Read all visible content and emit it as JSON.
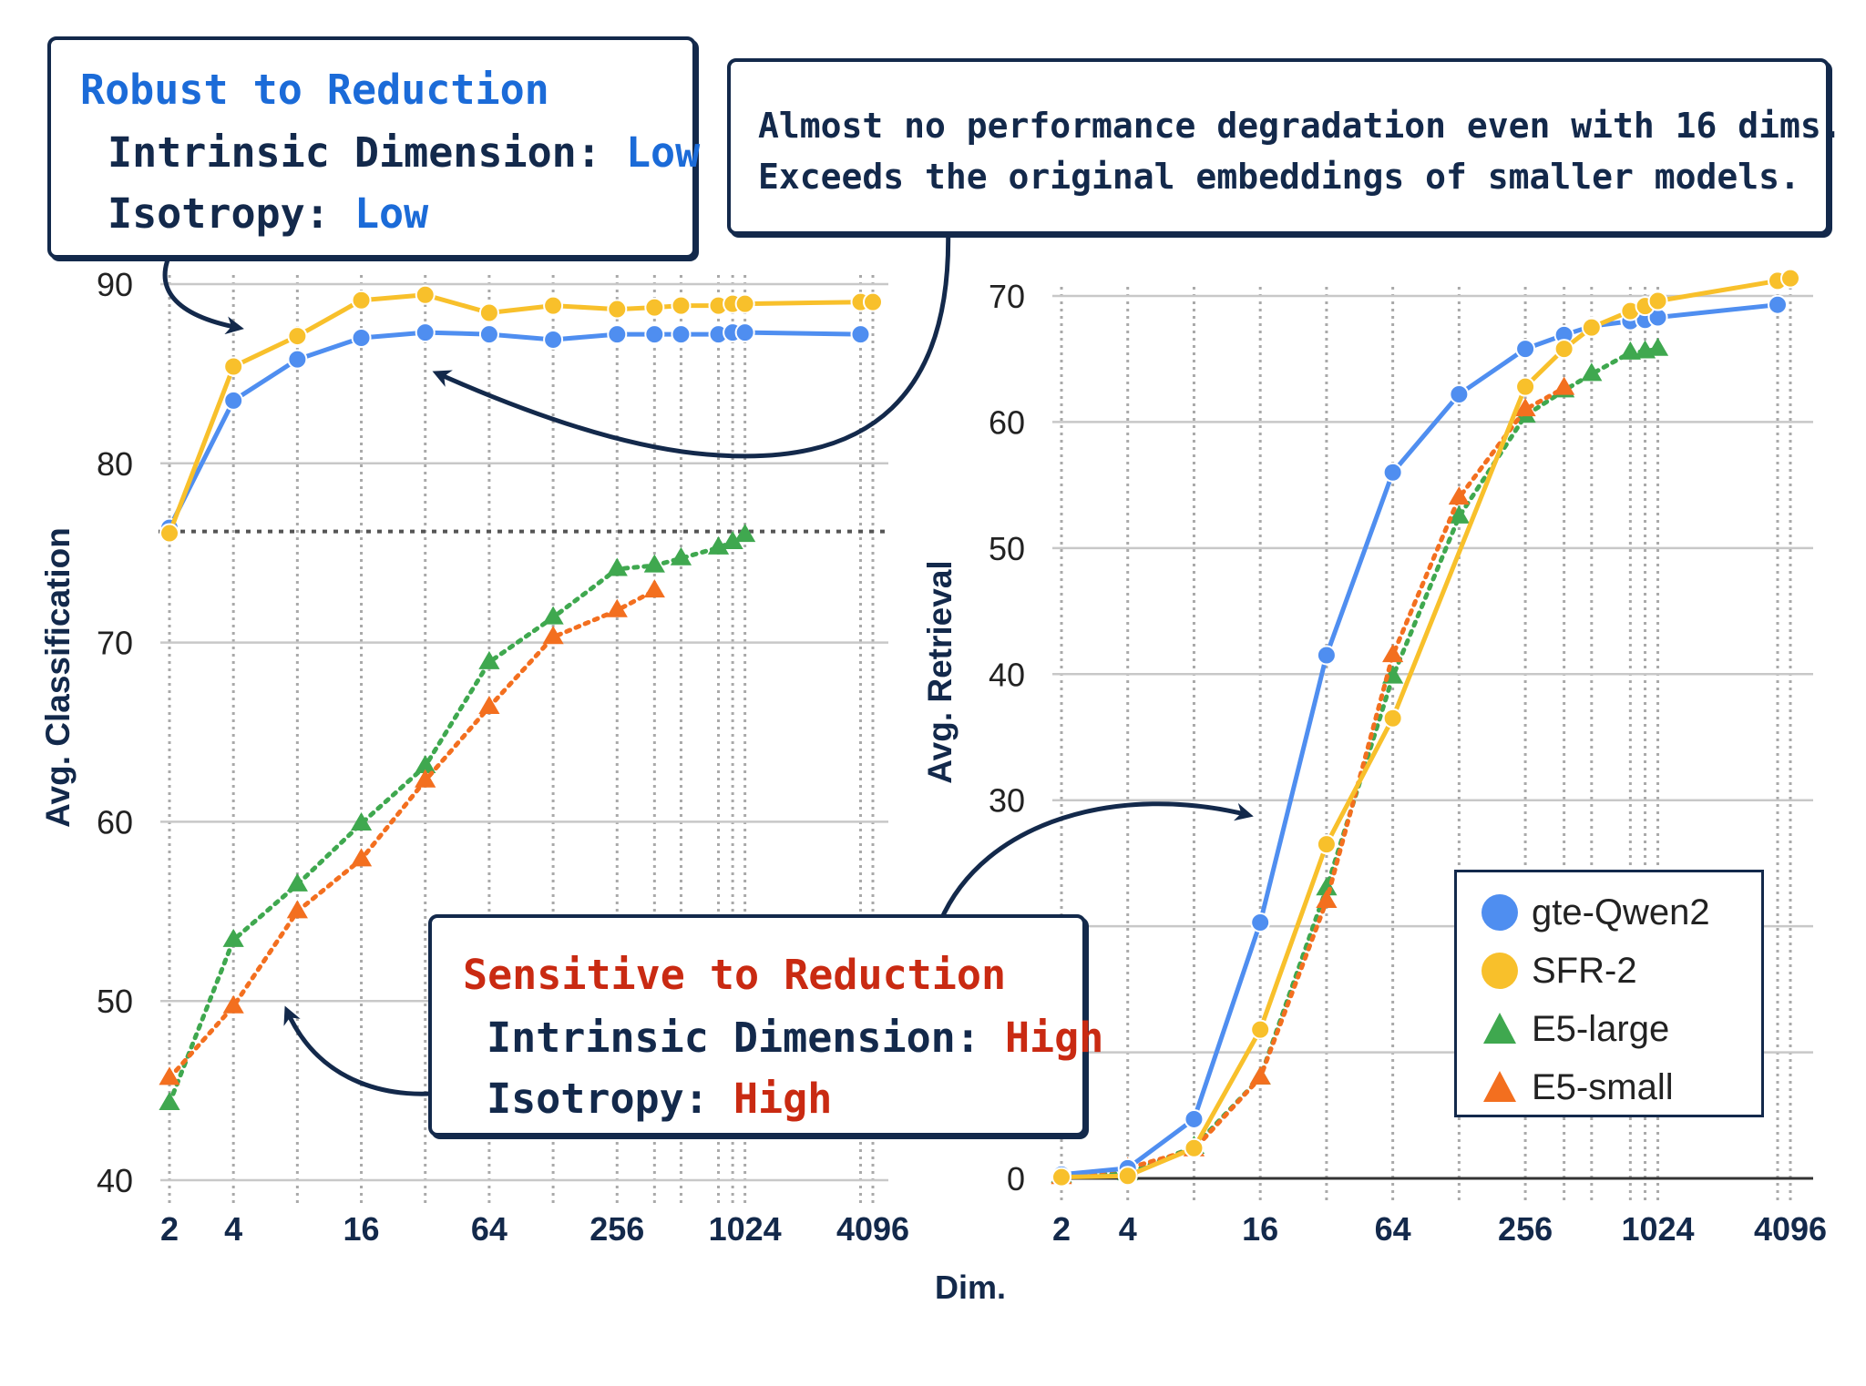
{
  "colors": {
    "gte": "#4f8ef0",
    "sfr": "#f8c02b",
    "e5large": "#3fa84f",
    "e5small": "#f36f1f",
    "navy": "#13294b",
    "blue_text": "#1b6bd8",
    "red_text": "#c92a12",
    "grid": "#c8c8c8"
  },
  "annotations": {
    "robust": {
      "title": "Robust to Reduction",
      "dim_label": "Intrinsic Dimension:",
      "dim_value": "Low",
      "iso_label": "Isotropy:",
      "iso_value": "Low"
    },
    "note": {
      "line1": "Almost no performance degradation even with 16 dims.",
      "line2": "Exceeds the original embeddings of smaller models."
    },
    "sensitive": {
      "title": "Sensitive to Reduction",
      "dim_label": "Intrinsic Dimension:",
      "dim_value": "High",
      "iso_label": "Isotropy:",
      "iso_value": "High"
    }
  },
  "legend": {
    "items": [
      {
        "label": "gte-Qwen2",
        "shape": "circle",
        "color_key": "gte"
      },
      {
        "label": "SFR-2",
        "shape": "circle",
        "color_key": "sfr"
      },
      {
        "label": "E5-large",
        "shape": "triangle",
        "color_key": "e5large"
      },
      {
        "label": "E5-small",
        "shape": "triangle",
        "color_key": "e5small"
      }
    ]
  },
  "chart_data": [
    {
      "type": "line",
      "title": "",
      "xlabel": "Dim.",
      "ylabel": "Avg. Classification",
      "x_scale": "log2",
      "xlim": [
        2,
        4096
      ],
      "ylim": [
        40,
        90
      ],
      "yticks": [
        40,
        50,
        60,
        70,
        80,
        90
      ],
      "xticks": [
        2,
        4,
        16,
        64,
        256,
        1024,
        4096
      ],
      "reference_line": 76.2,
      "series": [
        {
          "name": "gte-Qwen2",
          "color_key": "gte",
          "marker": "circle",
          "dash": false,
          "x": [
            2,
            4,
            8,
            16,
            32,
            64,
            128,
            256,
            384,
            512,
            768,
            896,
            1024,
            3584
          ],
          "y": [
            76.4,
            83.5,
            85.8,
            87.0,
            87.3,
            87.2,
            86.9,
            87.2,
            87.2,
            87.2,
            87.2,
            87.3,
            87.3,
            87.2
          ]
        },
        {
          "name": "SFR-2",
          "color_key": "sfr",
          "marker": "circle",
          "dash": false,
          "x": [
            2,
            4,
            8,
            16,
            32,
            64,
            128,
            256,
            384,
            512,
            768,
            896,
            1024,
            3584,
            4096
          ],
          "y": [
            76.1,
            85.4,
            87.1,
            89.1,
            89.4,
            88.4,
            88.8,
            88.6,
            88.7,
            88.8,
            88.8,
            88.9,
            88.9,
            89.0,
            89.0
          ]
        },
        {
          "name": "E5-large",
          "color_key": "e5large",
          "marker": "triangle",
          "dash": true,
          "x": [
            2,
            4,
            8,
            16,
            32,
            64,
            128,
            256,
            384,
            512,
            768,
            896,
            1024
          ],
          "y": [
            44.3,
            53.4,
            56.5,
            59.9,
            63.1,
            68.9,
            71.4,
            74.1,
            74.3,
            74.7,
            75.3,
            75.6,
            76.0
          ]
        },
        {
          "name": "E5-small",
          "color_key": "e5small",
          "marker": "triangle",
          "dash": true,
          "x": [
            2,
            4,
            8,
            16,
            32,
            64,
            128,
            256,
            384
          ],
          "y": [
            45.7,
            49.7,
            55.0,
            57.9,
            62.3,
            66.4,
            70.3,
            71.8,
            72.9
          ]
        }
      ]
    },
    {
      "type": "line",
      "title": "",
      "xlabel": "Dim.",
      "ylabel": "Avg. Retrieval",
      "x_scale": "log2",
      "xlim": [
        2,
        4096
      ],
      "ylim": [
        0,
        70
      ],
      "yticks": [
        0,
        30,
        40,
        50,
        60,
        70
      ],
      "xticks": [
        2,
        4,
        16,
        64,
        256,
        1024,
        4096
      ],
      "series": [
        {
          "name": "gte-Qwen2",
          "color_key": "gte",
          "marker": "circle",
          "dash": false,
          "x": [
            2,
            4,
            8,
            16,
            32,
            64,
            128,
            256,
            384,
            512,
            768,
            896,
            1024,
            3584
          ],
          "y": [
            0.3,
            0.8,
            4.7,
            20.3,
            41.5,
            56.0,
            62.2,
            65.8,
            66.9,
            67.6,
            68.0,
            68.1,
            68.3,
            69.3
          ]
        },
        {
          "name": "SFR-2",
          "color_key": "sfr",
          "marker": "circle",
          "dash": false,
          "x": [
            2,
            4,
            8,
            16,
            32,
            64,
            256,
            384,
            512,
            768,
            896,
            1024,
            3584,
            4096
          ],
          "y": [
            0.1,
            0.2,
            2.4,
            11.8,
            26.5,
            36.5,
            62.8,
            65.8,
            67.5,
            68.8,
            69.2,
            69.6,
            71.2,
            71.4
          ]
        },
        {
          "name": "E5-large",
          "color_key": "e5large",
          "marker": "triangle",
          "dash": true,
          "x": [
            2,
            4,
            8,
            16,
            32,
            64,
            128,
            256,
            384,
            512,
            768,
            896,
            1024
          ],
          "y": [
            0.2,
            0.4,
            2.5,
            8.0,
            23.0,
            39.8,
            52.5,
            60.5,
            62.5,
            63.8,
            65.5,
            65.6,
            65.8
          ]
        },
        {
          "name": "E5-small",
          "color_key": "e5small",
          "marker": "triangle",
          "dash": true,
          "x": [
            2,
            4,
            8,
            16,
            32,
            64,
            128,
            256,
            384
          ],
          "y": [
            0.1,
            0.8,
            2.3,
            8.0,
            22.0,
            41.5,
            54.0,
            61.0,
            62.7
          ]
        }
      ]
    }
  ]
}
